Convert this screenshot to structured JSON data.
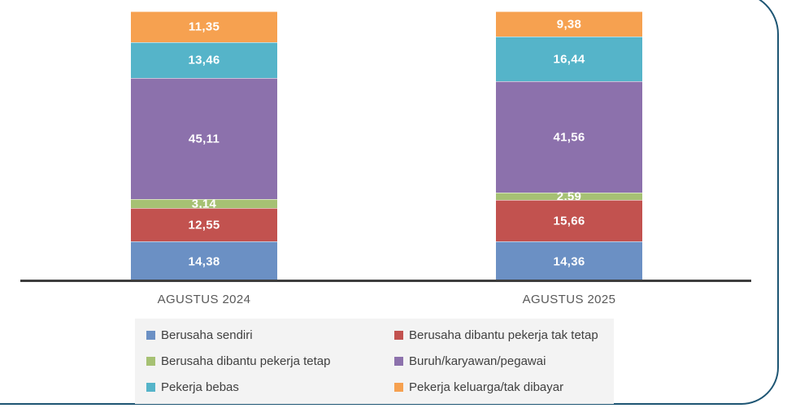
{
  "chart_data": {
    "type": "bar",
    "stacked": true,
    "unit": "percent",
    "title": "",
    "categories": [
      "AGUSTUS 2024",
      "AGUSTUS 2025"
    ],
    "series": [
      {
        "name": "Berusaha sendiri",
        "color": "#6b90c4",
        "values": [
          14.38,
          14.36
        ],
        "labels": [
          "14,38",
          "14,36"
        ]
      },
      {
        "name": "Berusaha dibantu pekerja tak tetap",
        "color": "#c2524f",
        "values": [
          12.55,
          15.66
        ],
        "labels": [
          "12,55",
          "15,66"
        ]
      },
      {
        "name": "Berusaha dibantu pekerja tetap",
        "color": "#a6c173",
        "values": [
          3.14,
          2.59
        ],
        "labels": [
          "3,14",
          "2,59"
        ]
      },
      {
        "name": "Buruh/karyawan/pegawai",
        "color": "#8c71ac",
        "values": [
          45.11,
          41.56
        ],
        "labels": [
          "45,11",
          "41,56"
        ]
      },
      {
        "name": "Pekerja bebas",
        "color": "#55b4c9",
        "values": [
          13.46,
          16.44
        ],
        "labels": [
          "13,46",
          "16,44"
        ]
      },
      {
        "name": "Pekerja keluarga/tak dibayar",
        "color": "#f6a150",
        "values": [
          11.35,
          9.38
        ],
        "labels": [
          "11,35",
          "9,38"
        ]
      }
    ],
    "ylim": [
      0,
      100
    ],
    "grid": false,
    "legend_position": "bottom",
    "value_label_color": "#ffffff",
    "axis_color": "#3d3d3d"
  },
  "frame": {
    "border_color": "#1d5573"
  },
  "legend": {
    "background": "#f3f3f3"
  }
}
